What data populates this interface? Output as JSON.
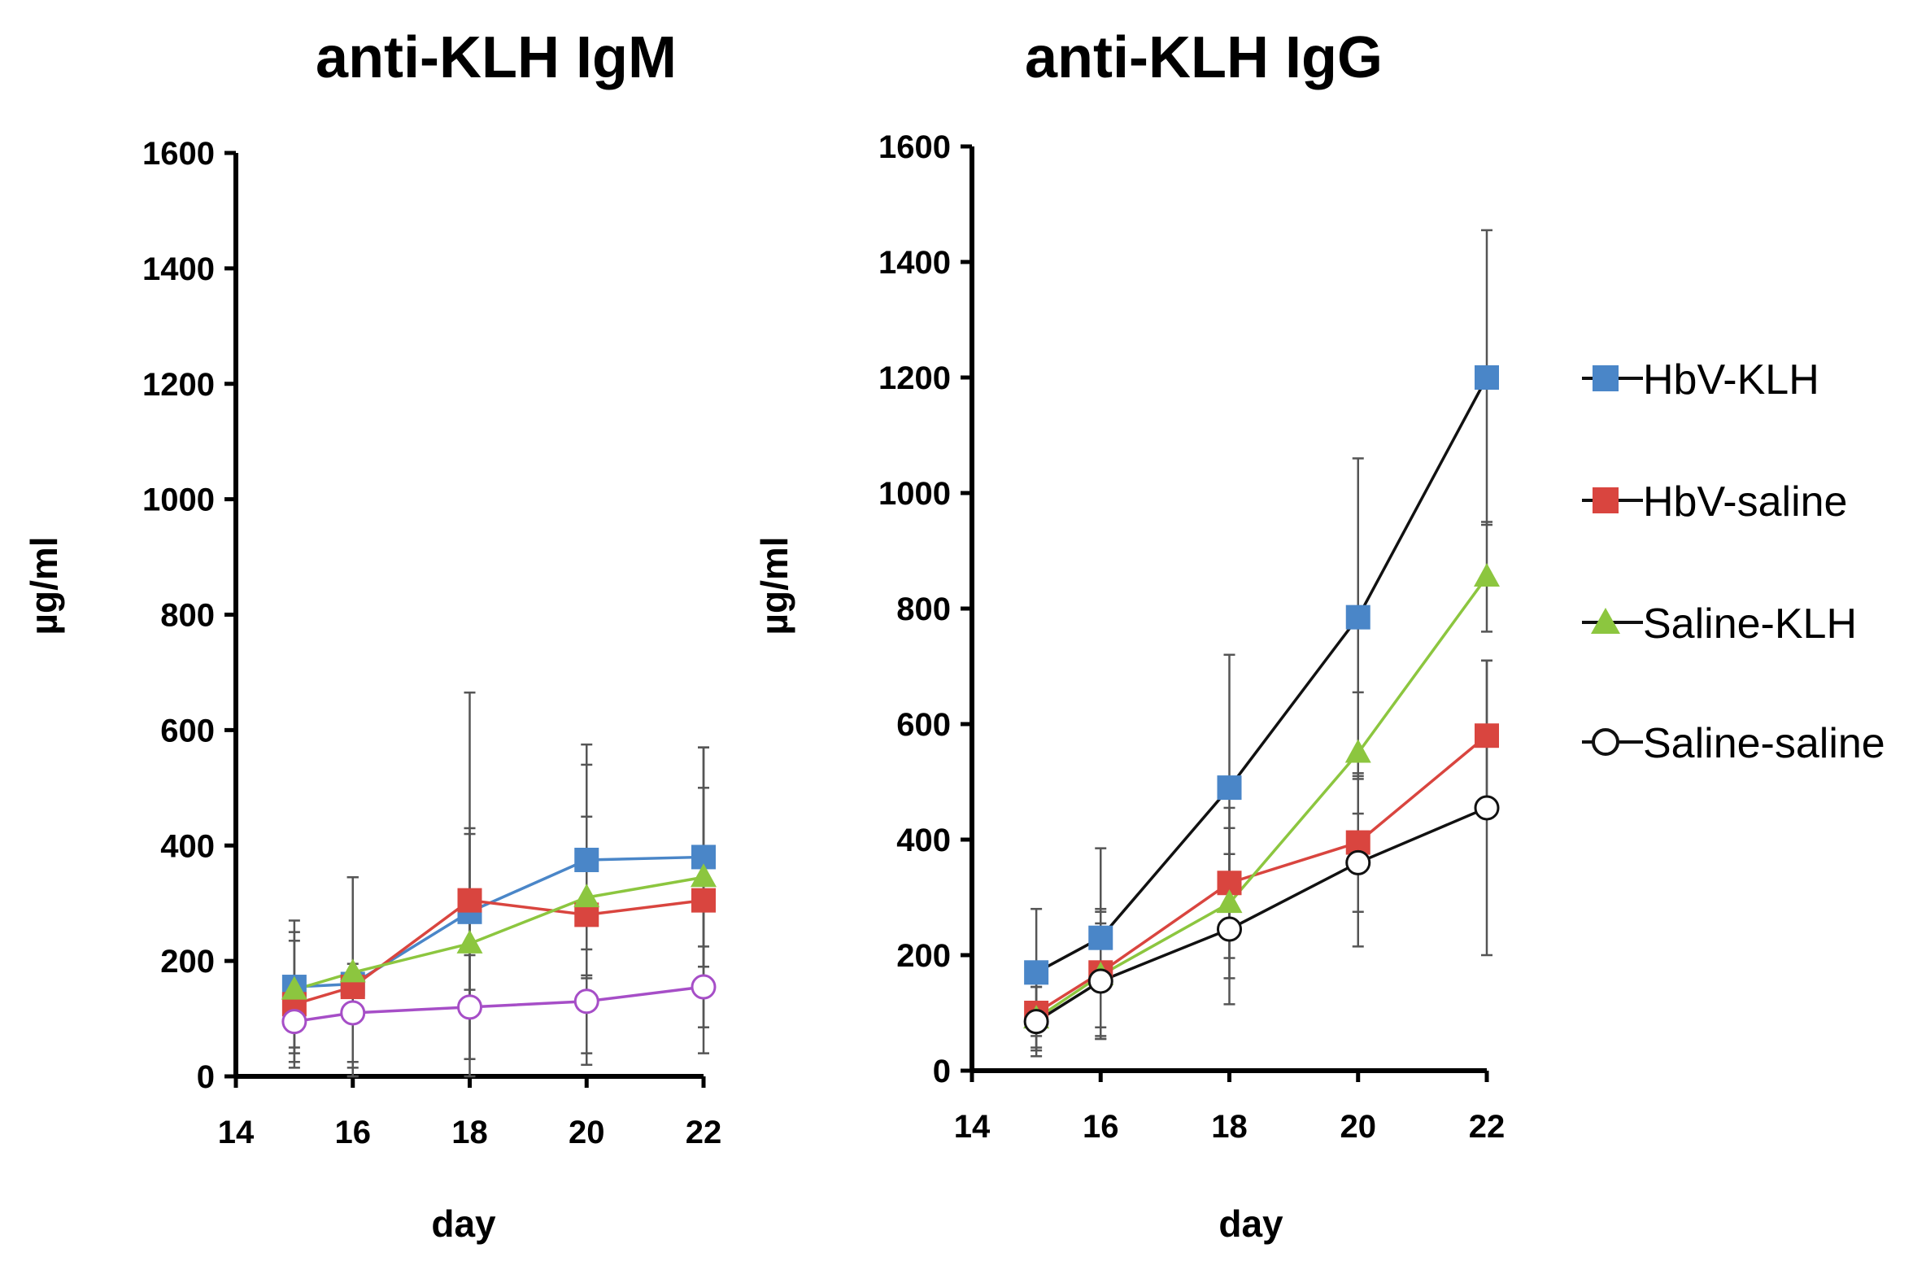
{
  "legend": [
    {
      "name": "HbV-KLH",
      "color": "#4a86c8",
      "marker": "square"
    },
    {
      "name": "HbV-saline",
      "color": "#d9453f",
      "marker": "square"
    },
    {
      "name": "Saline-KLH",
      "color": "#8cc63f",
      "marker": "triangle"
    },
    {
      "name": "Saline-saline",
      "color": "#ffffff",
      "marker": "circle"
    }
  ],
  "chart_data": [
    {
      "type": "line",
      "title": "anti-KLH IgM",
      "xlabel": "day",
      "ylabel": "µg/ml",
      "xlim": [
        14,
        22
      ],
      "ylim": [
        0,
        1600
      ],
      "xticks": [
        14,
        16,
        18,
        20,
        22
      ],
      "yticks": [
        0,
        200,
        400,
        600,
        800,
        1000,
        1200,
        1400,
        1600
      ],
      "x": [
        15,
        16,
        18,
        20,
        22
      ],
      "series": [
        {
          "name": "HbV-KLH",
          "values": [
            155,
            160,
            285,
            375,
            380
          ],
          "errors": [
            115,
            185,
            135,
            200,
            190
          ],
          "color": "#4a86c8",
          "line_color": "#4a86c8",
          "marker": "square"
        },
        {
          "name": "HbV-saline",
          "values": [
            125,
            155,
            305,
            280,
            305
          ],
          "errors": [
            110,
            190,
            360,
            260,
            265
          ],
          "color": "#d9453f",
          "line_color": "#d9453f",
          "marker": "square"
        },
        {
          "name": "Saline-KLH",
          "values": [
            150,
            180,
            230,
            310,
            345
          ],
          "errors": [
            100,
            165,
            200,
            140,
            155
          ],
          "color": "#8cc63f",
          "line_color": "#8cc63f",
          "marker": "triangle"
        },
        {
          "name": "Saline-saline",
          "values": [
            95,
            110,
            120,
            130,
            155
          ],
          "errors": [
            70,
            85,
            90,
            90,
            70
          ],
          "color": "#ffffff",
          "line_color": "#a64ec7",
          "marker": "circle"
        }
      ]
    },
    {
      "type": "line",
      "title": "anti-KLH IgG",
      "xlabel": "day",
      "ylabel": "µg/ml",
      "xlim": [
        14,
        22
      ],
      "ylim": [
        0,
        1600
      ],
      "xticks": [
        14,
        16,
        18,
        20,
        22
      ],
      "yticks": [
        0,
        200,
        400,
        600,
        800,
        1000,
        1200,
        1400,
        1600
      ],
      "x": [
        15,
        16,
        18,
        20,
        22
      ],
      "series": [
        {
          "name": "HbV-KLH",
          "values": [
            170,
            230,
            490,
            785,
            1200
          ],
          "errors": [
            110,
            155,
            230,
            275,
            255
          ],
          "color": "#4a86c8",
          "line_color": "#111111",
          "marker": "square"
        },
        {
          "name": "HbV-saline",
          "values": [
            100,
            170,
            325,
            395,
            580
          ],
          "errors": [
            60,
            110,
            130,
            120,
            130
          ],
          "color": "#d9453f",
          "line_color": "#d9453f",
          "marker": "square"
        },
        {
          "name": "Saline-KLH",
          "values": [
            90,
            165,
            290,
            550,
            855
          ],
          "errors": [
            55,
            110,
            130,
            105,
            95
          ],
          "color": "#8cc63f",
          "line_color": "#8cc63f",
          "marker": "triangle"
        },
        {
          "name": "Saline-saline",
          "values": [
            85,
            155,
            245,
            360,
            455
          ],
          "errors": [
            60,
            100,
            130,
            145,
            255
          ],
          "color": "#ffffff",
          "line_color": "#111111",
          "marker": "circle"
        }
      ]
    }
  ]
}
